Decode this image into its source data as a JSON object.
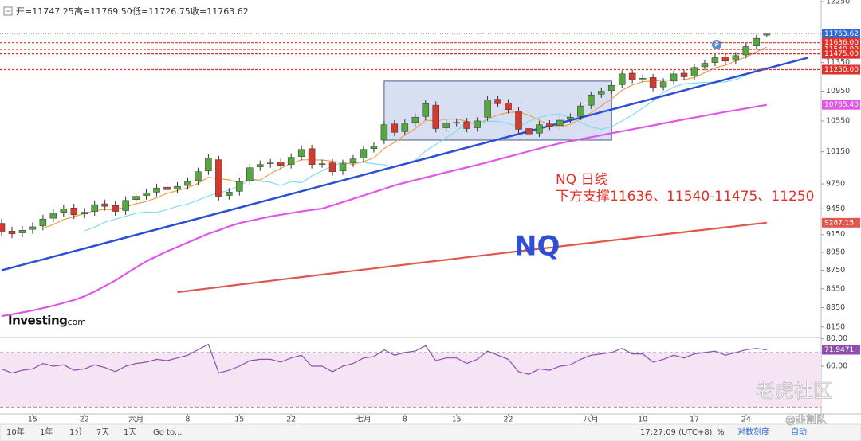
{
  "header": {
    "ohlc": [
      "开=11747.25",
      "高=11769.50",
      "低=11726.75",
      "收=11763.62"
    ]
  },
  "logo": {
    "name": "Investing",
    "suffix": ".com"
  },
  "chart_data": [
    {
      "type": "candlestick",
      "categories": [
        null,
        null,
        null,
        "15",
        null,
        null,
        null,
        null,
        "22",
        null,
        null,
        null,
        null,
        "六月",
        null,
        null,
        null,
        null,
        "8",
        null,
        null,
        null,
        null,
        "15",
        null,
        null,
        null,
        null,
        "22",
        null,
        null,
        null,
        null,
        null,
        null,
        "七月",
        null,
        null,
        null,
        "8",
        null,
        null,
        null,
        null,
        "15",
        null,
        null,
        null,
        null,
        "22",
        null,
        null,
        null,
        null,
        null,
        null,
        null,
        "八月",
        null,
        null,
        null,
        null,
        "10",
        null,
        null,
        null,
        null,
        "17",
        null,
        null,
        null,
        null,
        "24",
        null,
        null
      ],
      "open": [
        9280,
        9190,
        9170,
        9210,
        9250,
        9340,
        9410,
        9460,
        9390,
        9420,
        9510,
        9490,
        9430,
        9560,
        9610,
        9650,
        9710,
        9690,
        9730,
        9790,
        9910,
        10050,
        9610,
        9660,
        9790,
        9960,
        10000,
        10020,
        9990,
        10090,
        10190,
        10000,
        10010,
        9910,
        10010,
        10070,
        10190,
        10300,
        10510,
        10410,
        10530,
        10610,
        10760,
        10460,
        10530,
        10540,
        10460,
        10600,
        10840,
        10790,
        10680,
        10450,
        10390,
        10510,
        10490,
        10570,
        10610,
        10760,
        10910,
        10960,
        11040,
        11200,
        11120,
        11140,
        11010,
        11090,
        11200,
        11160,
        11290,
        11350,
        11430,
        11380,
        11460,
        11590,
        11747.25
      ],
      "high": [
        9330,
        9240,
        9250,
        9290,
        9380,
        9450,
        9500,
        9510,
        9460,
        9550,
        9560,
        9540,
        9600,
        9650,
        9690,
        9750,
        9760,
        9770,
        9830,
        9950,
        10120,
        10100,
        9700,
        9830,
        10000,
        10040,
        10060,
        10070,
        10130,
        10230,
        10240,
        10050,
        10060,
        10050,
        10110,
        10230,
        10270,
        10550,
        10560,
        10570,
        10650,
        10830,
        10810,
        10570,
        10580,
        10590,
        10600,
        10880,
        10890,
        10840,
        10730,
        10500,
        10550,
        10560,
        10610,
        10650,
        10800,
        10950,
        11000,
        11080,
        11240,
        11250,
        11180,
        11190,
        11130,
        11240,
        11250,
        11330,
        11390,
        11470,
        11480,
        11500,
        11630,
        11750,
        11769.5
      ],
      "low": [
        9130,
        9110,
        9120,
        9160,
        9200,
        9290,
        9360,
        9330,
        9340,
        9370,
        9430,
        9370,
        9380,
        9510,
        9560,
        9600,
        9630,
        9640,
        9680,
        9740,
        9860,
        9550,
        9560,
        9610,
        9740,
        9910,
        9950,
        9930,
        9940,
        10040,
        9940,
        9950,
        9850,
        9860,
        9960,
        10020,
        10140,
        10250,
        10350,
        10360,
        10480,
        10560,
        10400,
        10410,
        10480,
        10400,
        10410,
        10550,
        10730,
        10650,
        10390,
        10330,
        10340,
        10430,
        10440,
        10520,
        10560,
        10710,
        10860,
        10910,
        10990,
        11060,
        11070,
        10950,
        10960,
        11040,
        11100,
        11110,
        11240,
        11300,
        11320,
        11330,
        11410,
        11540,
        11726.75
      ],
      "close": [
        9180,
        9160,
        9200,
        9240,
        9330,
        9400,
        9450,
        9380,
        9410,
        9500,
        9480,
        9420,
        9550,
        9600,
        9640,
        9700,
        9680,
        9720,
        9780,
        9900,
        10070,
        9600,
        9650,
        9780,
        9950,
        9990,
        10010,
        9980,
        10080,
        10180,
        9990,
        10000,
        9900,
        10000,
        10060,
        10180,
        10220,
        10500,
        10400,
        10520,
        10600,
        10780,
        10450,
        10520,
        10530,
        10450,
        10550,
        10830,
        10780,
        10700,
        10440,
        10380,
        10500,
        10480,
        10560,
        10600,
        10750,
        10900,
        10950,
        11030,
        11190,
        11110,
        11130,
        11000,
        11080,
        11190,
        11150,
        11280,
        11340,
        11420,
        11370,
        11450,
        11580,
        11700,
        11763.62
      ],
      "up_color": "#56a641",
      "down_color": "#d23b2e",
      "ylim": [
        8100,
        12300
      ],
      "ylog": true,
      "yticks": [
        12250,
        11350,
        10950,
        10550,
        10150,
        9750,
        9450,
        9150,
        8950,
        8750,
        8550,
        8350,
        8150
      ],
      "series": [
        {
          "color": "#e8a24c",
          "values": [
            null,
            null,
            null,
            null,
            9222,
            9266,
            9324,
            9360,
            9394,
            9428,
            9444,
            9438,
            9472,
            9510,
            9538,
            9582,
            9634,
            9668,
            9704,
            9756,
            9830,
            9814,
            9800,
            9760,
            9810,
            9794,
            9876,
            9942,
            10002,
            10048,
            10048,
            10046,
            10030,
            10014,
            9990,
            10028,
            10072,
            10192,
            10272,
            10364,
            10448,
            10560,
            10550,
            10574,
            10576,
            10546,
            10500,
            10576,
            10628,
            10662,
            10670,
            10626,
            10560,
            10500,
            10472,
            10504,
            10578,
            10658,
            10752,
            10846,
            10964,
            11036,
            11082,
            11092,
            11102,
            11102,
            11110,
            11140,
            11208,
            11276,
            11312,
            11372,
            11432,
            11504,
            11573
          ]
        },
        {
          "color": "#7fdcef",
          "values": [
            null,
            null,
            null,
            null,
            null,
            null,
            null,
            null,
            9192,
            9236,
            9294,
            9330,
            9364,
            9398,
            9414,
            9408,
            9442,
            9480,
            9508,
            9552,
            9604,
            9638,
            9674,
            9726,
            9800,
            9784,
            9770,
            9730,
            9780,
            9764,
            9846,
            9912,
            9972,
            10018,
            10018,
            10016,
            10000,
            9984,
            9960,
            9998,
            10042,
            10162,
            10242,
            10334,
            10418,
            10530,
            10520,
            10544,
            10546,
            10516,
            10470,
            10546,
            10598,
            10632,
            10640,
            10596,
            10530,
            10470,
            10442,
            10474,
            10548,
            10628,
            10722,
            10816,
            10934,
            11006,
            11052,
            11062,
            11072,
            11072,
            11080,
            11110,
            11178,
            11246,
            11282
          ]
        },
        {
          "color": "#e056e6",
          "values": [
            8263,
            8280,
            8300,
            8320,
            8345,
            8370,
            8400,
            8430,
            8470,
            8520,
            8580,
            8640,
            8710,
            8780,
            8850,
            8906,
            8960,
            9010,
            9060,
            9110,
            9160,
            9200,
            9245,
            9283,
            9310,
            9335,
            9360,
            9380,
            9400,
            9420,
            9438,
            9453,
            9490,
            9530,
            9570,
            9610,
            9650,
            9690,
            9732,
            9765,
            9797,
            9828,
            9860,
            9892,
            9923,
            9954,
            9984,
            10018,
            10052,
            10087,
            10122,
            10157,
            10192,
            10226,
            10260,
            10286,
            10312,
            10338,
            10364,
            10390,
            10415,
            10441,
            10467,
            10492,
            10518,
            10544,
            10570,
            10595,
            10620,
            10646,
            10670,
            10693,
            10717,
            10741,
            10765.4
          ]
        },
        {
          "color": "#e0574b",
          "values": [
            null,
            null,
            null,
            null,
            null,
            null,
            null,
            null,
            null,
            null,
            null,
            null,
            null,
            null,
            null,
            null,
            null,
            8513,
            8527,
            8540,
            8554,
            8567,
            8581,
            8595,
            8608,
            8622,
            8635,
            8649,
            8663,
            8676,
            8690,
            8703,
            8717,
            8731,
            8744,
            8758,
            8771,
            8785,
            8799,
            8812,
            8826,
            8839,
            8853,
            8866,
            8880,
            8894,
            8907,
            8921,
            8934,
            8948,
            8962,
            8975,
            8989,
            9002,
            9016,
            9030,
            9043,
            9057,
            9070,
            9084,
            9098,
            9111,
            9125,
            9138,
            9152,
            9166,
            9179,
            9193,
            9206,
            9220,
            9234,
            9247,
            9261,
            9274,
            9287.15
          ]
        }
      ],
      "trendline": {
        "color": "#2c4fd4",
        "x": [
          0,
          78
        ],
        "values": [
          8750,
          11420
        ]
      },
      "highlight_box": {
        "color": "#b9c5e8",
        "x": [
          37,
          59
        ],
        "values": [
          10300,
          11090
        ]
      },
      "price_tags": [
        {
          "value": 11763.62,
          "label": "11763.62",
          "color": "#2f6bd6",
          "line": "dotted"
        },
        {
          "value": 11636,
          "label": "11636.00",
          "color": "#e0302a",
          "line": "dashed"
        },
        {
          "value": 11540,
          "label": "11540.00",
          "color": "#e0302a",
          "line": "dashed"
        },
        {
          "value": 11475,
          "label": "11475.00",
          "color": "#e0302a",
          "line": "dashed"
        },
        {
          "value": 11250,
          "label": "11250.00",
          "color": "#e0302a",
          "line": "dashed"
        },
        {
          "value": 10765.4,
          "label": "10765.40",
          "color": "#e056e6"
        },
        {
          "value": 9287.15,
          "label": "9287.15",
          "color": "#e0574b"
        }
      ],
      "annotations": [
        "NQ 日线",
        "下方支撑11636、11540-11475、11250",
        "NQ"
      ]
    },
    {
      "type": "line",
      "series": [
        {
          "color": "#8e4fb0",
          "values": [
            58,
            55,
            57,
            58,
            62,
            60,
            61,
            57,
            58,
            61,
            59,
            56,
            60,
            62,
            63,
            65,
            64,
            66,
            68,
            72,
            76,
            55,
            57,
            60,
            64,
            65,
            65,
            63,
            66,
            68,
            60,
            60,
            56,
            60,
            62,
            66,
            67,
            72,
            68,
            70,
            71,
            75,
            64,
            66,
            66,
            62,
            65,
            71,
            68,
            65,
            56,
            54,
            58,
            57,
            60,
            61,
            65,
            68,
            69,
            70,
            73,
            69,
            69,
            63,
            65,
            68,
            66,
            69,
            70,
            71,
            68,
            70,
            72,
            73,
            71.9471
          ]
        }
      ],
      "ylim": [
        25,
        81
      ],
      "yticks": [
        {
          "value": 80,
          "label": "80.00"
        },
        {
          "value": 60,
          "label": "60.00"
        }
      ],
      "ref_lines": [
        70,
        30
      ],
      "price_tag": {
        "value": 71.9471,
        "label": "71.9471",
        "color": "#8e4fb0"
      }
    }
  ],
  "toolbar": {
    "left": [
      "10年",
      "1年",
      "1分",
      "7天",
      "1天",
      "Go to..."
    ],
    "right": [
      "17:27:09 (UTC+8)",
      "%",
      "对数刻度",
      "自动"
    ]
  },
  "watermark": [
    "老虎社区",
    "@韭割队"
  ]
}
